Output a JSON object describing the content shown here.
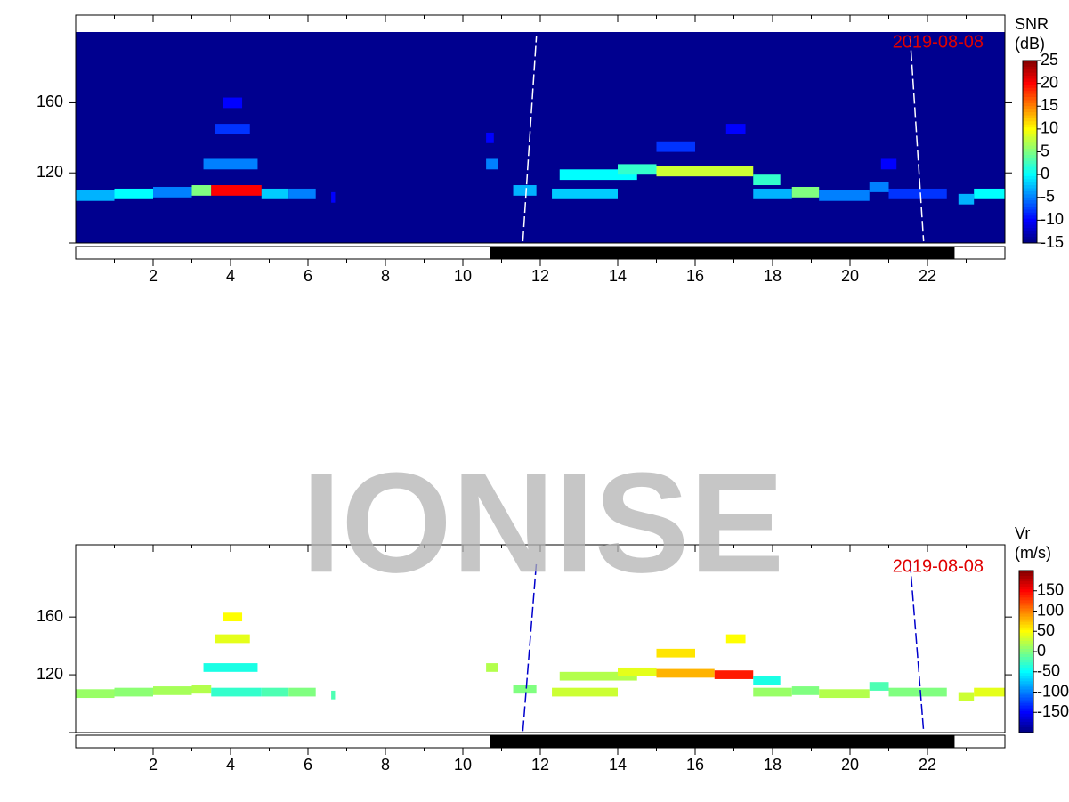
{
  "watermark": "IONISE",
  "chart_data": [
    {
      "type": "heatmap",
      "date_label": "2019-08-08",
      "colorbar_title": [
        "SNR",
        "(dB)"
      ],
      "xlim": [
        0,
        24
      ],
      "xticks": [
        2,
        4,
        6,
        8,
        10,
        12,
        14,
        16,
        18,
        20,
        22
      ],
      "ylim": [
        80,
        210
      ],
      "yticks": [
        120,
        160
      ],
      "clim": [
        -15,
        25
      ],
      "cticks": [
        25,
        20,
        15,
        10,
        5,
        0,
        -5,
        -10,
        -15
      ],
      "night": [
        10.7,
        22.7
      ],
      "background": "#00008f",
      "echoes": [
        [
          0,
          1,
          107,
          -3
        ],
        [
          1,
          2,
          108,
          0
        ],
        [
          2,
          3,
          109,
          -5
        ],
        [
          3,
          3.5,
          110,
          5
        ],
        [
          3.5,
          4.8,
          110,
          20
        ],
        [
          4.8,
          5.5,
          108,
          -2
        ],
        [
          5.5,
          6.2,
          108,
          -5
        ],
        [
          3.3,
          4.7,
          125,
          -5
        ],
        [
          3.6,
          4.5,
          145,
          -8
        ],
        [
          3.8,
          4.3,
          160,
          -10
        ],
        [
          6.6,
          6.7,
          106,
          -10
        ],
        [
          10.6,
          10.9,
          125,
          -5
        ],
        [
          10.6,
          10.8,
          140,
          -10
        ],
        [
          11.3,
          11.9,
          110,
          -3
        ],
        [
          12.3,
          14,
          108,
          -2
        ],
        [
          12.5,
          14.5,
          119,
          0
        ],
        [
          14,
          15,
          122,
          2
        ],
        [
          15,
          17.5,
          121,
          8
        ],
        [
          15,
          16,
          135,
          -8
        ],
        [
          17.5,
          18.2,
          116,
          2
        ],
        [
          17.5,
          18.5,
          108,
          -3
        ],
        [
          18.5,
          19.2,
          109,
          5
        ],
        [
          19.2,
          20.5,
          107,
          -5
        ],
        [
          20.5,
          21,
          112,
          -5
        ],
        [
          21,
          22.5,
          108,
          -8
        ],
        [
          22.8,
          23.2,
          105,
          -3
        ],
        [
          23.2,
          24,
          108,
          0
        ],
        [
          20.8,
          21.2,
          125,
          -10
        ],
        [
          16.8,
          17.3,
          145,
          -10
        ]
      ]
    },
    {
      "type": "heatmap",
      "date_label": "2019-08-08",
      "colorbar_title": [
        "Vr",
        "(m/s)"
      ],
      "xlim": [
        0,
        24
      ],
      "xticks": [
        2,
        4,
        6,
        8,
        10,
        12,
        14,
        16,
        18,
        20,
        22
      ],
      "ylim": [
        80,
        210
      ],
      "yticks": [
        120,
        160
      ],
      "clim": [
        -200,
        200
      ],
      "cticks": [
        150,
        100,
        50,
        0,
        -50,
        -100,
        -150
      ],
      "night": [
        10.7,
        22.7
      ],
      "background": "#ffffff",
      "echoes": [
        [
          0,
          1,
          107,
          10
        ],
        [
          1,
          2,
          108,
          5
        ],
        [
          2,
          3,
          109,
          15
        ],
        [
          3,
          3.5,
          110,
          20
        ],
        [
          3.5,
          4.8,
          108,
          -30
        ],
        [
          4.8,
          5.5,
          108,
          -20
        ],
        [
          5.5,
          6.2,
          108,
          0
        ],
        [
          3.3,
          4.7,
          125,
          -40
        ],
        [
          3.6,
          4.5,
          145,
          40
        ],
        [
          3.8,
          4.3,
          160,
          50
        ],
        [
          6.6,
          6.7,
          106,
          -20
        ],
        [
          10.6,
          10.9,
          125,
          20
        ],
        [
          11.3,
          11.9,
          110,
          0
        ],
        [
          12.3,
          14,
          108,
          30
        ],
        [
          12.5,
          14.5,
          119,
          20
        ],
        [
          14,
          15,
          122,
          40
        ],
        [
          15,
          16.5,
          121,
          80
        ],
        [
          16.5,
          17.5,
          120,
          140
        ],
        [
          15,
          16,
          135,
          60
        ],
        [
          17.5,
          18.2,
          116,
          -40
        ],
        [
          17.5,
          18.5,
          108,
          10
        ],
        [
          18.5,
          19.2,
          109,
          0
        ],
        [
          19.2,
          20.5,
          107,
          20
        ],
        [
          20.5,
          21,
          112,
          -20
        ],
        [
          21,
          22.5,
          108,
          0
        ],
        [
          22.8,
          23.2,
          105,
          30
        ],
        [
          23.2,
          24,
          108,
          40
        ],
        [
          16.8,
          17.3,
          145,
          50
        ]
      ]
    }
  ]
}
